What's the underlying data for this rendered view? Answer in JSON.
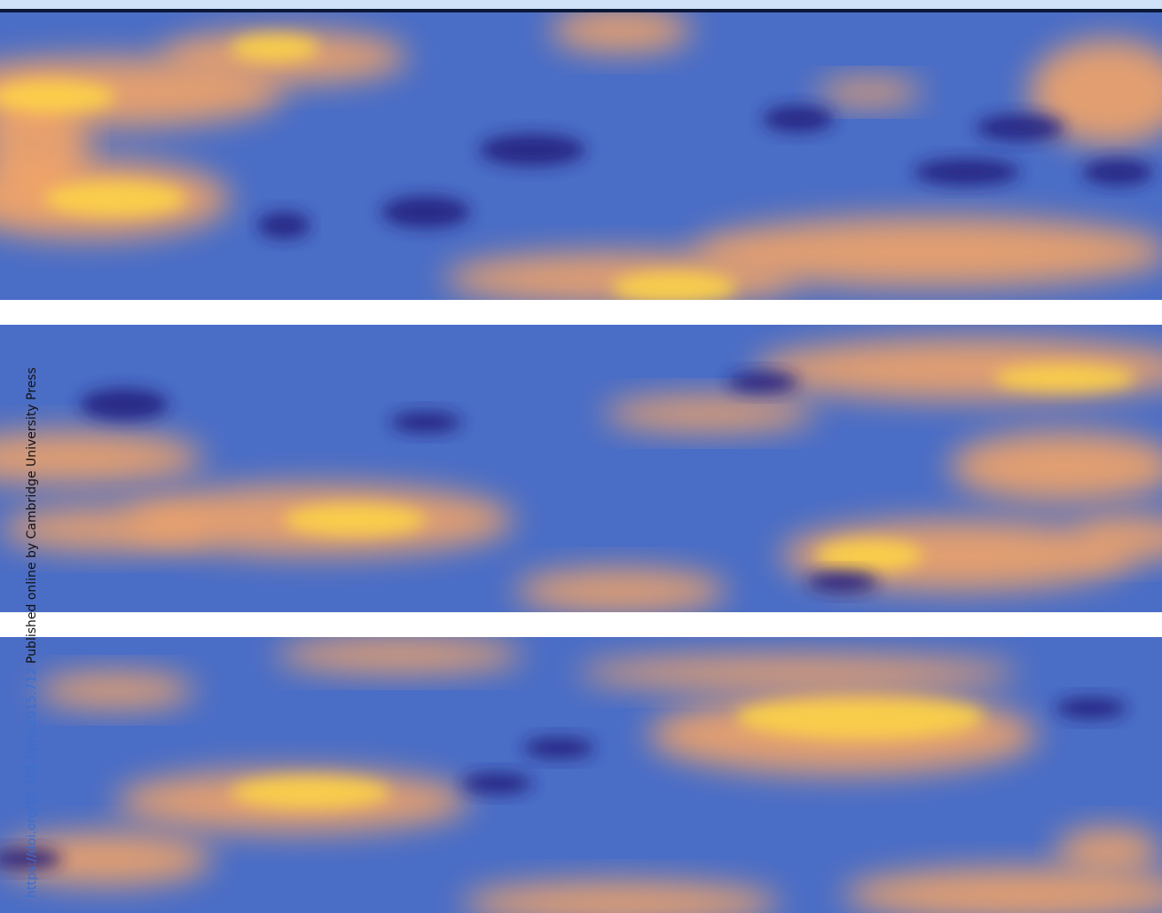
{
  "side_text": {
    "link": "https://doi.org/10.1017/jfm.2015.712",
    "text": "Published online by Cambridge University Press"
  }
}
